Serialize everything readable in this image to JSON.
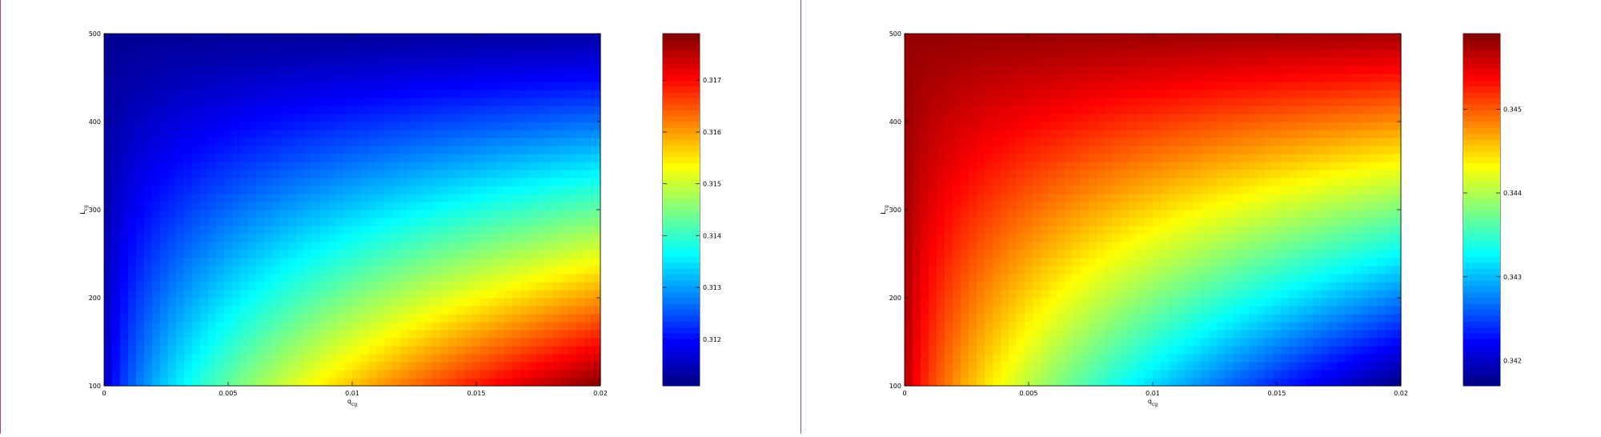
{
  "chart_data": [
    {
      "type": "heatmap",
      "xlabel": "q",
      "xlabel_sub": "cg",
      "ylabel": "L",
      "ylabel_sub": "cg",
      "xlim": [
        0,
        0.02
      ],
      "ylim": [
        100,
        500
      ],
      "xticks": [
        "0",
        "0.005",
        "0.01",
        "0.015",
        "0.02"
      ],
      "yticks": [
        "100",
        "200",
        "300",
        "400",
        "500"
      ],
      "xtick_values": [
        0,
        0.005,
        0.01,
        0.015,
        0.02
      ],
      "ytick_values": [
        100,
        200,
        300,
        400,
        500
      ],
      "colormap": "jet",
      "colorbar": {
        "min": 0.3111,
        "max": 0.3179,
        "ticks": [
          "0.312",
          "0.313",
          "0.314",
          "0.315",
          "0.316",
          "0.317"
        ],
        "tick_values": [
          0.312,
          0.313,
          0.314,
          0.315,
          0.316,
          0.317
        ]
      },
      "features": {
        "min_region": "top-left (q=0, L=500)",
        "max_region": "bottom-right (q=0.02, L=100)",
        "trend": "increases with q_cg, decreases with L_cg; curved ridge toward low L"
      }
    },
    {
      "type": "heatmap",
      "xlabel": "q",
      "xlabel_sub": "cg",
      "ylabel": "L",
      "ylabel_sub": "cg",
      "xlim": [
        0,
        0.02
      ],
      "ylim": [
        100,
        500
      ],
      "xticks": [
        "0",
        "0.005",
        "0.01",
        "0.015",
        "0.02"
      ],
      "yticks": [
        "100",
        "200",
        "300",
        "400",
        "500"
      ],
      "xtick_values": [
        0,
        0.005,
        0.01,
        0.015,
        0.02
      ],
      "ytick_values": [
        100,
        200,
        300,
        400,
        500
      ],
      "colormap": "jet",
      "colorbar": {
        "min": 0.3417,
        "max": 0.3459,
        "ticks": [
          "0.342",
          "0.343",
          "0.344",
          "0.345"
        ],
        "tick_values": [
          0.342,
          0.343,
          0.344,
          0.345
        ]
      },
      "features": {
        "min_region": "bottom-right (q=0.02, L=100)",
        "max_region": "top-left (q=0, L=500)",
        "trend": "decreases with q_cg, increases with L_cg; curved ridge toward low L"
      }
    }
  ]
}
